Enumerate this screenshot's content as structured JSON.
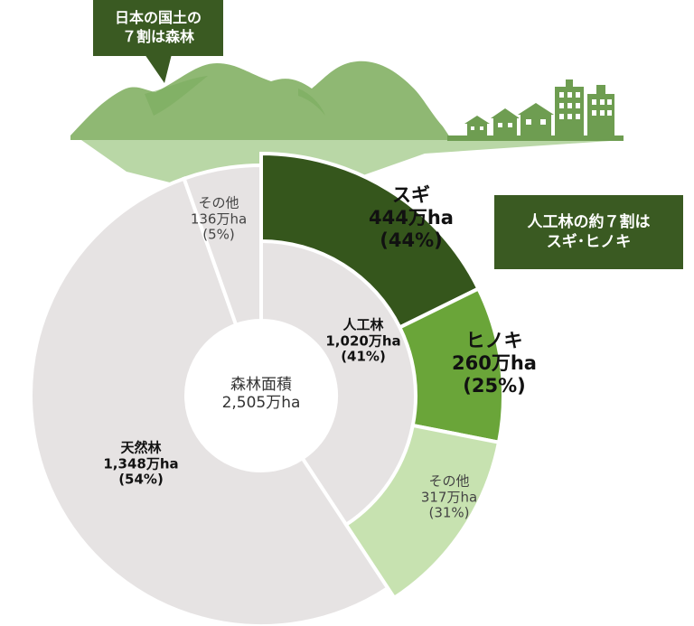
{
  "callouts": {
    "top": [
      "日本の国土の",
      "７割は森林"
    ],
    "right": [
      "人工林の約７割は",
      "スギ･ヒノキ"
    ]
  },
  "colors": {
    "mountain": "#8fb873",
    "mountain_dark": "#6e9d51",
    "mountain_shadow": "#b9d7a6",
    "callout": "#3a5a22",
    "ring_gray": "#e6e3e3",
    "sugi": "#35561c",
    "hinoki": "#6aa539",
    "other_planted": "#c7e2b0",
    "gap": "#ffffff"
  },
  "chart_data": {
    "type": "pie",
    "center": [
      "森林面積",
      "2,505万ha"
    ],
    "inner": [
      {
        "name": "人工林",
        "value": "1,020万ha",
        "pct": "(41%)",
        "area_10k_ha": 1020,
        "percent": 41
      },
      {
        "name": "天然林",
        "value": "1,348万ha",
        "pct": "(54%)",
        "area_10k_ha": 1348,
        "percent": 54
      },
      {
        "name": "その他",
        "value": "136万ha",
        "pct": "(5%)",
        "area_10k_ha": 136,
        "percent": 5
      }
    ],
    "outer": [
      {
        "name": "スギ",
        "value": "444万ha",
        "pct": "(44%)",
        "area_10k_ha": 444,
        "percent": 44
      },
      {
        "name": "ヒノキ",
        "value": "260万ha",
        "pct": "(25%)",
        "area_10k_ha": 260,
        "percent": 25
      },
      {
        "name": "その他",
        "value": "317万ha",
        "pct": "(31%)",
        "area_10k_ha": 317,
        "percent": 31
      }
    ]
  }
}
